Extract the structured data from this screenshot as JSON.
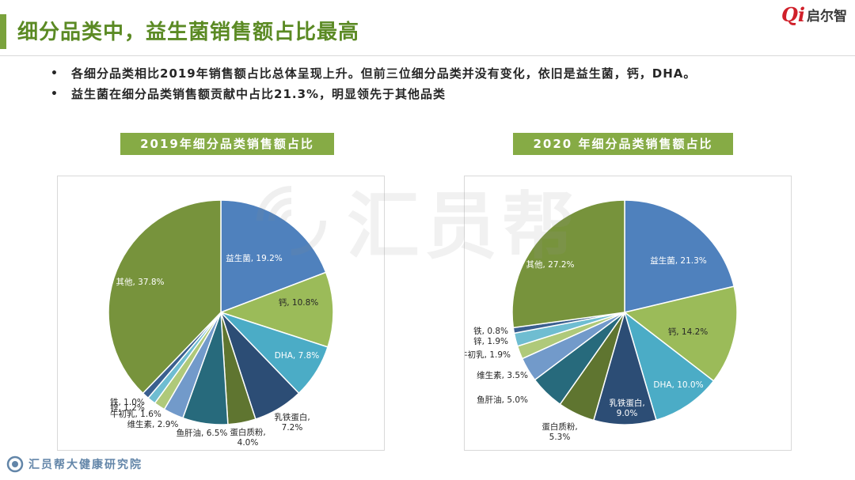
{
  "page": {
    "title": "细分品类中，益生菌销售额占比最高",
    "bullets": [
      "各细分品类相比2019年销售额占比总体呈现上升。但前三位细分品类并没有变化，依旧是益生菌，钙，DHA。",
      "益生菌在细分品类销售额贡献中占比21.3%，明显领先于其他品类"
    ]
  },
  "logo": {
    "mark": "Qi",
    "text": "启尔智"
  },
  "watermark": {
    "text": "汇员帮"
  },
  "footer": {
    "text": "汇员帮大健康研究院"
  },
  "chart_data": [
    {
      "type": "pie",
      "title": "2019年细分品类销售额占比",
      "slices": [
        {
          "name": "益生菌",
          "value": 19.2,
          "label": "益生菌, 19.2%",
          "color": "#4f81bd"
        },
        {
          "name": "钙",
          "value": 10.8,
          "label": "钙, 10.8%",
          "color": "#9bbb59"
        },
        {
          "name": "DHA",
          "value": 7.8,
          "label": "DHA, 7.8%",
          "color": "#4bacc6"
        },
        {
          "name": "乳铁蛋白",
          "value": 7.2,
          "label": "乳铁蛋白,\n7.2%",
          "color": "#2c4d75"
        },
        {
          "name": "蛋白质粉",
          "value": 4.0,
          "label": "蛋白质粉,\n4.0%",
          "color": "#5f7530"
        },
        {
          "name": "鱼肝油",
          "value": 6.5,
          "label": "鱼肝油, 6.5%",
          "color": "#276a7c"
        },
        {
          "name": "维生素",
          "value": 2.9,
          "label": "维生素, 2.9%",
          "color": "#729aca"
        },
        {
          "name": "牛初乳",
          "value": 1.6,
          "label": "牛初乳, 1.6%",
          "color": "#afc97a"
        },
        {
          "name": "锌",
          "value": 1.2,
          "label": "锌, 1.2%",
          "color": "#6fbdd1"
        },
        {
          "name": "铁",
          "value": 1.0,
          "label": "铁, 1.0%",
          "color": "#3a5f8f"
        },
        {
          "name": "其他",
          "value": 37.8,
          "label": "其他, 37.8%",
          "color": "#77933c"
        }
      ]
    },
    {
      "type": "pie",
      "title": "2020 年细分品类销售额占比",
      "slices": [
        {
          "name": "益生菌",
          "value": 21.3,
          "label": "益生菌, 21.3%",
          "color": "#4f81bd"
        },
        {
          "name": "钙",
          "value": 14.2,
          "label": "钙, 14.2%",
          "color": "#9bbb59"
        },
        {
          "name": "DHA",
          "value": 10.0,
          "label": "DHA, 10.0%",
          "color": "#4bacc6"
        },
        {
          "name": "乳铁蛋白",
          "value": 9.0,
          "label": "乳铁蛋白,\n9.0%",
          "color": "#2c4d75"
        },
        {
          "name": "蛋白质粉",
          "value": 5.3,
          "label": "蛋白质粉,\n5.3%",
          "color": "#5f7530"
        },
        {
          "name": "鱼肝油",
          "value": 5.0,
          "label": "鱼肝油, 5.0%",
          "color": "#276a7c"
        },
        {
          "name": "维生素",
          "value": 3.5,
          "label": "维生素, 3.5%",
          "color": "#729aca"
        },
        {
          "name": "牛初乳",
          "value": 1.9,
          "label": "牛初乳, 1.9%",
          "color": "#afc97a"
        },
        {
          "name": "锌",
          "value": 1.9,
          "label": "锌, 1.9%",
          "color": "#6fbdd1"
        },
        {
          "name": "铁",
          "value": 0.8,
          "label": "铁, 0.8%",
          "color": "#3a5f8f"
        },
        {
          "name": "其他",
          "value": 27.2,
          "label": "其他, 27.2%",
          "color": "#77933c"
        }
      ]
    }
  ]
}
